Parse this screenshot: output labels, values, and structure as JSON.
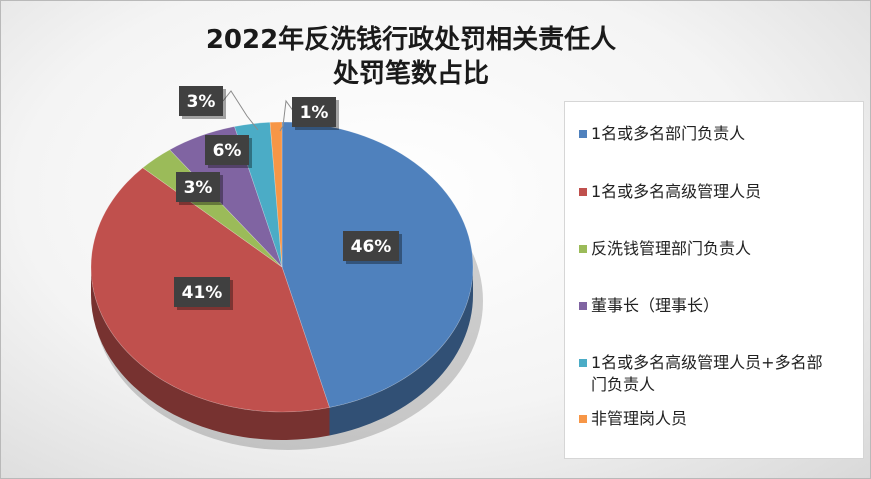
{
  "chart_data": {
    "type": "pie",
    "title_line1": "2022年反洗钱行政处罚相关责任人",
    "title_line2": "处罚笔数占比",
    "categories": [
      "1名或多名部门负责人",
      "1名或多名高级管理人员",
      "反洗钱管理部门负责人",
      "董事长（理事长）",
      "1名或多名高级管理人员+多名部门负责人",
      "非管理岗人员"
    ],
    "legend_lines": [
      [
        "1名或多名部门负责人"
      ],
      [
        "1名或多名高级管理人员"
      ],
      [
        "反洗钱管理部门负责人"
      ],
      [
        "董事长（理事长）"
      ],
      [
        "1名或多名高级管理人员+多名部",
        "门负责人"
      ],
      [
        "非管理岗人员"
      ]
    ],
    "values": [
      46,
      41,
      3,
      6,
      3,
      1
    ],
    "data_labels": [
      "46%",
      "41%",
      "3%",
      "6%",
      "3%",
      "1%"
    ],
    "colors": [
      "#4F81BD",
      "#C0504D",
      "#9BBB59",
      "#8064A2",
      "#4BACC6",
      "#F79646"
    ],
    "legend_position": "right"
  }
}
